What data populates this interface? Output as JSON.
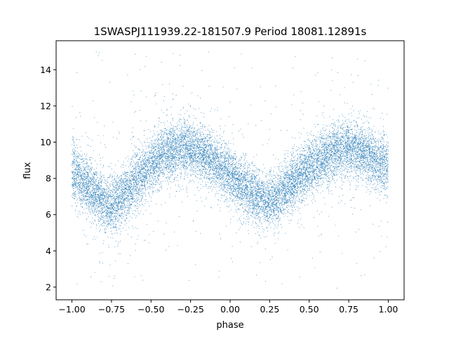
{
  "chart_data": {
    "type": "scatter",
    "title": "1SWASPJ111939.22-181507.9 Period 18081.12891s",
    "xlabel": "phase",
    "ylabel": "flux",
    "xlim": [
      -1.1,
      1.1
    ],
    "ylim": [
      1.3,
      15.6
    ],
    "x_ticks": [
      -1.0,
      -0.75,
      -0.5,
      -0.25,
      0.0,
      0.25,
      0.5,
      0.75,
      1.0
    ],
    "x_tick_labels": [
      "−1.00",
      "−0.75",
      "−0.50",
      "−0.25",
      "0.00",
      "0.25",
      "0.50",
      "0.75",
      "1.00"
    ],
    "y_ticks": [
      2,
      4,
      6,
      8,
      10,
      12,
      14
    ],
    "y_tick_labels": [
      "2",
      "4",
      "6",
      "8",
      "10",
      "12",
      "14"
    ],
    "grid": false,
    "marker_color": "#1f77b4",
    "series": [
      {
        "x_range": [
          -1.0,
          1.0
        ],
        "points": [
          [
            -1.0,
            8.4
          ],
          [
            -0.9,
            7.6
          ],
          [
            -0.8,
            6.7
          ],
          [
            -0.75,
            6.5
          ],
          [
            -0.7,
            6.8
          ],
          [
            -0.6,
            7.8
          ],
          [
            -0.5,
            8.8
          ],
          [
            -0.4,
            9.4
          ],
          [
            -0.3,
            9.7
          ],
          [
            -0.25,
            9.6
          ],
          [
            -0.2,
            9.5
          ],
          [
            -0.1,
            8.9
          ],
          [
            0.0,
            8.2
          ],
          [
            0.1,
            7.4
          ],
          [
            0.2,
            6.8
          ],
          [
            0.25,
            6.7
          ],
          [
            0.3,
            6.9
          ],
          [
            0.4,
            7.8
          ],
          [
            0.5,
            8.6
          ],
          [
            0.6,
            9.2
          ],
          [
            0.7,
            9.6
          ],
          [
            0.75,
            9.7
          ],
          [
            0.8,
            9.5
          ],
          [
            0.9,
            9.1
          ],
          [
            1.0,
            8.6
          ]
        ]
      }
    ]
  }
}
